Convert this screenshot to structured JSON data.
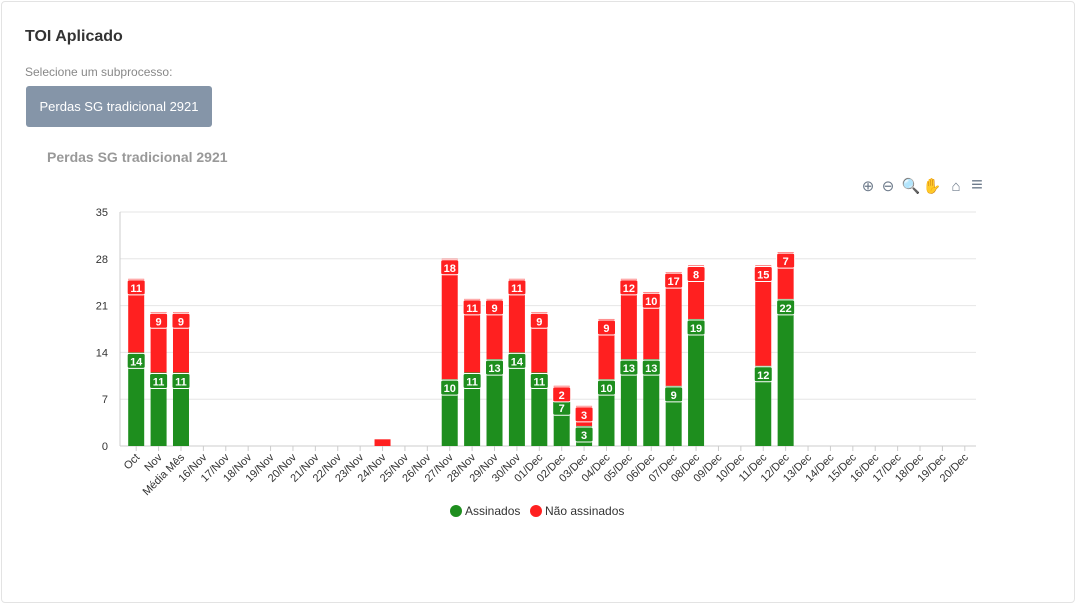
{
  "page": {
    "title": "TOI Aplicado",
    "subprocess_label": "Selecione um subprocesso:",
    "subprocess_button": "Perdas SG tradicional 2921"
  },
  "toolbar": [
    "zoom-in-icon",
    "zoom-out-icon",
    "selection-zoom-icon",
    "pan-icon",
    "home-icon",
    "menu-icon"
  ],
  "chart_data": {
    "type": "bar",
    "stacked": true,
    "title": "Perdas SG tradicional 2921",
    "categories": [
      "Oct",
      "Nov",
      "Média Mês",
      "16/Nov",
      "17/Nov",
      "18/Nov",
      "19/Nov",
      "20/Nov",
      "21/Nov",
      "22/Nov",
      "23/Nov",
      "24/Nov",
      "25/Nov",
      "26/Nov",
      "27/Nov",
      "28/Nov",
      "29/Nov",
      "30/Nov",
      "01/Dec",
      "02/Dec",
      "03/Dec",
      "04/Dec",
      "05/Dec",
      "06/Dec",
      "07/Dec",
      "08/Dec",
      "09/Dec",
      "10/Dec",
      "11/Dec",
      "12/Dec",
      "13/Dec",
      "14/Dec",
      "15/Dec",
      "16/Dec",
      "17/Dec",
      "18/Dec",
      "19/Dec",
      "20/Dec"
    ],
    "series": [
      {
        "name": "Assinados",
        "color": "#1e8e1e",
        "values": [
          14,
          11,
          11,
          0,
          0,
          0,
          0,
          0,
          0,
          0,
          0,
          0,
          0,
          0,
          10,
          11,
          13,
          14,
          11,
          7,
          3,
          10,
          13,
          13,
          9,
          19,
          0,
          0,
          12,
          22,
          0,
          0,
          0,
          0,
          0,
          0,
          0,
          0
        ]
      },
      {
        "name": "Não assinados",
        "color": "#ff2020",
        "values": [
          11,
          9,
          9,
          0,
          0,
          0,
          0,
          0,
          0,
          0,
          0,
          1,
          0,
          0,
          18,
          11,
          9,
          11,
          9,
          2,
          3,
          9,
          12,
          10,
          17,
          8,
          0,
          0,
          15,
          7,
          0,
          0,
          0,
          0,
          0,
          0,
          0,
          0
        ]
      }
    ],
    "yticks": [
      0,
      7,
      14,
      21,
      28,
      35
    ],
    "ylim": [
      0,
      35
    ],
    "legend": "bottom-center",
    "grid": true
  }
}
